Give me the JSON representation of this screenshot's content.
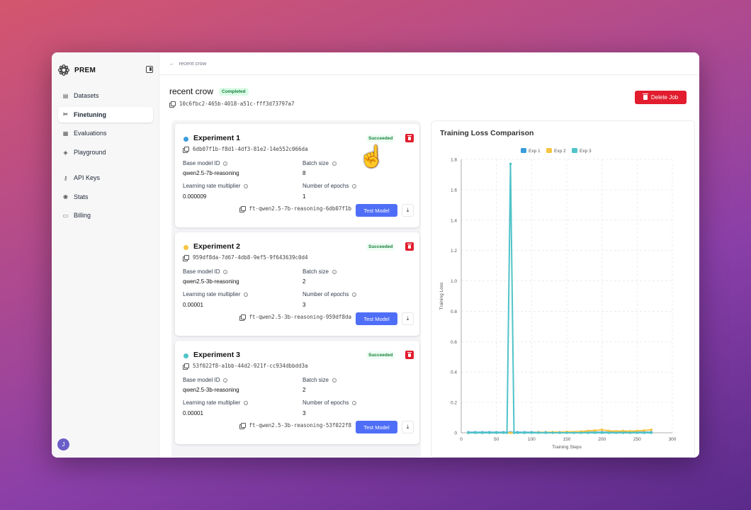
{
  "brand": {
    "name": "PREM"
  },
  "sidebar": {
    "items": [
      {
        "label": "Datasets",
        "icon": "database-icon"
      },
      {
        "label": "Finetuning",
        "icon": "tools-icon",
        "active": true
      },
      {
        "label": "Evaluations",
        "icon": "chart-icon"
      },
      {
        "label": "Playground",
        "icon": "playground-icon"
      },
      {
        "label": "API Keys",
        "icon": "key-icon"
      },
      {
        "label": "Stats",
        "icon": "stats-icon"
      },
      {
        "label": "Billing",
        "icon": "billing-icon"
      }
    ],
    "avatar_initial": "J"
  },
  "breadcrumb": {
    "back_label": "recent crow"
  },
  "job": {
    "title": "recent crow",
    "status": "Completed",
    "id": "10c6fbc2-465b-4018-a51c-fff3d73797a7",
    "delete_label": "Delete Job"
  },
  "labels": {
    "base_model": "Base model ID",
    "batch_size": "Batch size",
    "lr_mult": "Learning rate multiplier",
    "epochs": "Number of epochs",
    "test_model": "Test Model",
    "succeeded": "Succeeded"
  },
  "experiments": [
    {
      "name": "Experiment 1",
      "color": "#3b9ddd",
      "id": "6db07f1b-f8d1-4df3-81e2-14e552c066da",
      "base_model": "qwen2.5-7b-reasoning",
      "batch_size": "8",
      "lr_mult": "0.000009",
      "epochs": "1",
      "ft_model": "ft-qwen2.5-7b-reasoning-6db07f1b"
    },
    {
      "name": "Experiment 2",
      "color": "#f5c542",
      "id": "959df8da-7d67-4db8-9ef5-9f643639c0d4",
      "base_model": "qwen2.5-3b-reasoning",
      "batch_size": "2",
      "lr_mult": "0.00001",
      "epochs": "3",
      "ft_model": "ft-qwen2.5-3b-reasoning-959df8da"
    },
    {
      "name": "Experiment 3",
      "color": "#4fc3c8",
      "id": "53f022f8-a1bb-44d2-921f-cc934dbbdd3a",
      "base_model": "qwen2.5-3b-reasoning",
      "batch_size": "2",
      "lr_mult": "0.00001",
      "epochs": "3",
      "ft_model": "ft-qwen2.5-3b-reasoning-53f022f8"
    }
  ],
  "chart_data": {
    "type": "line",
    "title": "Training Loss Comparison",
    "xlabel": "Training Steps",
    "ylabel": "Training Loss",
    "xlim": [
      0,
      300
    ],
    "ylim": [
      0,
      1.8
    ],
    "xticks": [
      0,
      50,
      100,
      150,
      200,
      250,
      300
    ],
    "yticks": [
      0,
      0.2,
      0.4,
      0.6,
      0.8,
      1.0,
      1.2,
      1.4,
      1.6,
      1.8
    ],
    "ytick_labels": [
      "0",
      "0.2",
      "0.4",
      "0.6",
      "0.8",
      "1.0",
      "1.2",
      "1.4",
      "1.6",
      "1.8"
    ],
    "grid": true,
    "legend_position": "top",
    "series": [
      {
        "name": "Exp 1",
        "color": "#3b9ddd",
        "x": [
          10,
          20,
          30,
          40,
          50,
          60,
          70,
          80,
          90,
          100,
          110,
          120,
          130,
          140,
          150,
          160,
          170,
          180,
          190,
          200,
          210,
          220,
          230,
          240,
          250,
          260,
          270
        ],
        "y": [
          0.003,
          0.003,
          0.003,
          0.003,
          0.003,
          0.003,
          0.003,
          0.003,
          0.003,
          0.003,
          0.003,
          0.003,
          0.003,
          0.003,
          0.003,
          0.003,
          0.003,
          0.003,
          0.003,
          0.003,
          0.003,
          0.003,
          0.003,
          0.003,
          0.003,
          0.003,
          0.003
        ]
      },
      {
        "name": "Exp 2",
        "color": "#f5c542",
        "x": [
          10,
          30,
          50,
          70,
          90,
          110,
          130,
          150,
          170,
          180,
          190,
          200,
          210,
          220,
          230,
          240,
          250,
          260,
          270
        ],
        "y": [
          0.0,
          0.0,
          0.0,
          0.0,
          0.0,
          0.002,
          0.004,
          0.006,
          0.008,
          0.012,
          0.015,
          0.02,
          0.012,
          0.01,
          0.012,
          0.01,
          0.012,
          0.015,
          0.02
        ]
      },
      {
        "name": "Exp 3",
        "color": "#4fc3c8",
        "x": [
          10,
          20,
          30,
          40,
          50,
          60,
          65,
          70,
          75,
          80,
          90,
          100,
          110,
          120,
          130,
          140,
          150,
          160,
          170,
          180,
          190,
          200,
          210,
          220,
          230,
          240,
          250,
          260,
          270
        ],
        "y": [
          0.0,
          0.0,
          0.0,
          0.0,
          0.0,
          0.0,
          0.0,
          1.77,
          0.0,
          0.0,
          0.0,
          0.0,
          0.0,
          0.0,
          0.0,
          0.0,
          0.0,
          0.0,
          0.0,
          0.0,
          0.0,
          0.0,
          0.0,
          0.0,
          0.0,
          0.0,
          0.0,
          0.0,
          0.0
        ]
      }
    ]
  }
}
